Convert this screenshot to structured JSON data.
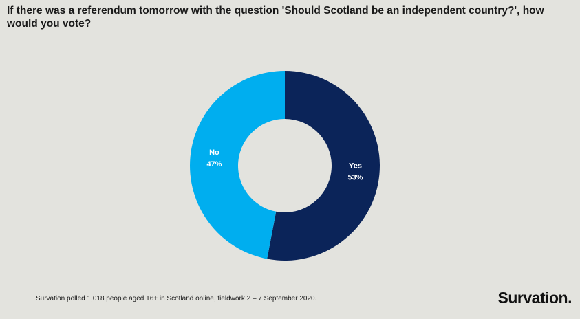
{
  "chart_data": {
    "type": "donut",
    "title": "If there was a referendum tomorrow with the question 'Should Scotland be an independent country?', how would you vote?",
    "categories": [
      "Yes",
      "No"
    ],
    "values": [
      53,
      47
    ],
    "value_labels": [
      "53%",
      "47%"
    ],
    "colors": [
      "#0b2459",
      "#00aeef"
    ],
    "footnote": "Survation polled 1,018 people aged 16+ in Scotland online, fieldwork 2 – 7 September 2020.",
    "logo": "Survation."
  }
}
